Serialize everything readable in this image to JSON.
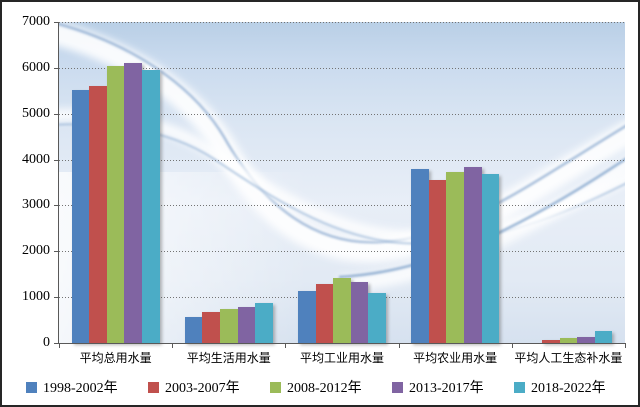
{
  "chart_data": {
    "type": "bar",
    "title": "",
    "categories": [
      "平均总用水量",
      "平均生活用水量",
      "平均工业用水量",
      "平均农业用水量",
      "平均人工生态补水量"
    ],
    "series": [
      {
        "name": "1998-2002年",
        "color": "#4F81BD",
        "values": [
          5510,
          570,
          1140,
          3790,
          0
        ]
      },
      {
        "name": "2003-2007年",
        "color": "#C0504D",
        "values": [
          5610,
          670,
          1280,
          3550,
          75
        ]
      },
      {
        "name": "2008-2012年",
        "color": "#9BBB59",
        "values": [
          6030,
          740,
          1410,
          3740,
          105
        ]
      },
      {
        "name": "2013-2017年",
        "color": "#8064A2",
        "values": [
          6100,
          795,
          1330,
          3840,
          135
        ]
      },
      {
        "name": "2018-2022年",
        "color": "#4BACC6",
        "values": [
          5950,
          870,
          1100,
          3680,
          255
        ]
      }
    ],
    "xlabel": "",
    "ylabel": "",
    "ylim": [
      0,
      7000
    ],
    "yticks": [
      0,
      1000,
      2000,
      3000,
      4000,
      5000,
      6000,
      7000
    ],
    "grid": "horizontal-dotted",
    "grid_color": "#737373",
    "axis_color": "#595959",
    "legend_position": "bottom",
    "plot_background": "blue satin waves"
  }
}
